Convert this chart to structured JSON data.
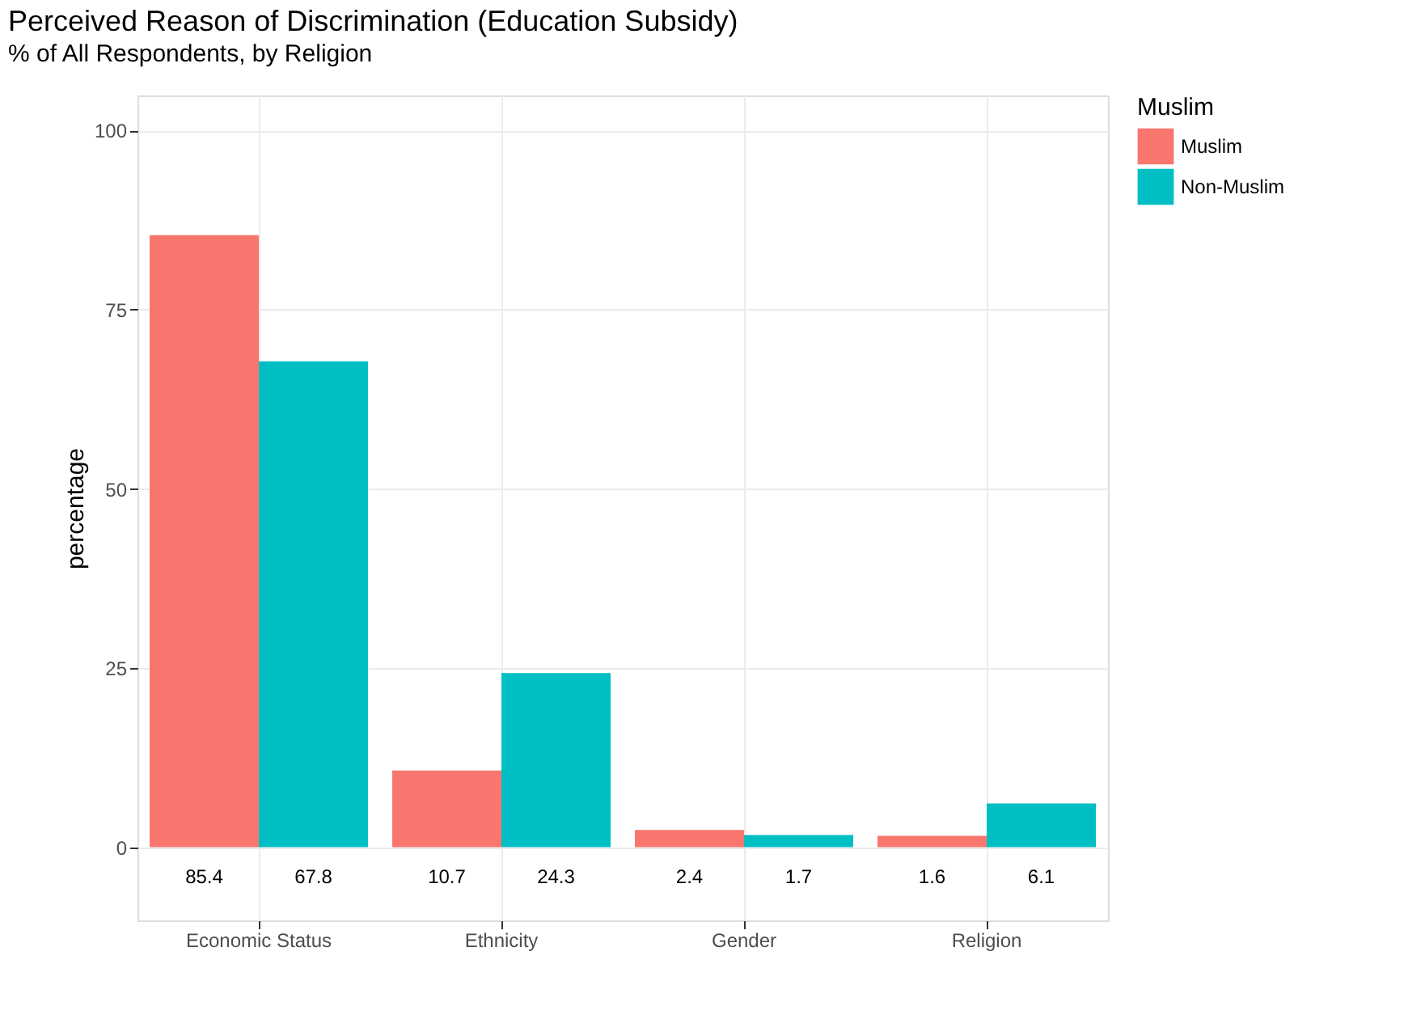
{
  "chart_data": {
    "type": "bar",
    "title": "Perceived Reason of Discrimination (Education Subsidy)",
    "subtitle": "% of All Respondents, by Religion",
    "ylabel": "percentage",
    "legend_title": "Muslim",
    "categories": [
      "Economic Status",
      "Ethnicity",
      "Gender",
      "Religion"
    ],
    "series": [
      {
        "name": "Muslim",
        "color": "#f8766d",
        "values": [
          85.4,
          10.7,
          2.4,
          1.6
        ]
      },
      {
        "name": "Non-Muslim",
        "color": "#00bfc4",
        "values": [
          67.8,
          24.3,
          1.7,
          6.1
        ]
      }
    ],
    "ylim": [
      -10.2,
      104.9
    ],
    "yticks": [
      0,
      25,
      50,
      75,
      100
    ],
    "grid": true,
    "legend": "right",
    "data_labels": true
  }
}
